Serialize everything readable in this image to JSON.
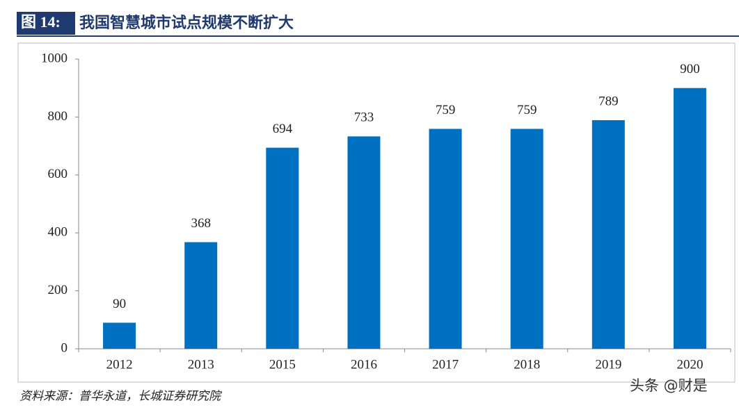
{
  "figure_label": "图 14:",
  "chart_data": {
    "type": "bar",
    "title": "我国智慧城市试点规模不断扩大",
    "categories": [
      "2012",
      "2013",
      "2015",
      "2016",
      "2017",
      "2018",
      "2019",
      "2020"
    ],
    "values": [
      90,
      368,
      694,
      733,
      759,
      759,
      789,
      900
    ],
    "color": "#0070c0",
    "ylim": [
      0,
      1000
    ],
    "yticks": [
      0,
      200,
      400,
      600,
      800,
      1000
    ],
    "grid": false
  },
  "source": "资料来源：普华永道，长城证券研究院",
  "watermark": "头条 @财是"
}
